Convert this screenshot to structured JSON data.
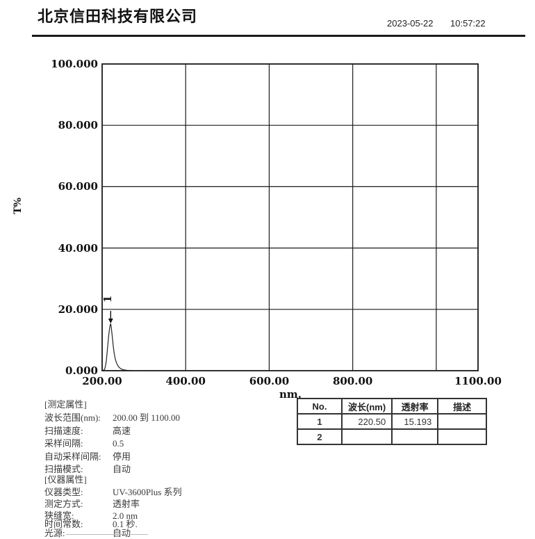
{
  "header": {
    "company": "北京信田科技有限公司",
    "date": "2023-05-22",
    "time": "10:57:22"
  },
  "chart_data": {
    "type": "line",
    "title": "",
    "xlabel": "nm.",
    "ylabel": "T%",
    "xlim": [
      200,
      1100
    ],
    "ylim": [
      0,
      100
    ],
    "grid": true,
    "x_ticks": [
      {
        "value": 200,
        "label": "200.00"
      },
      {
        "value": 400,
        "label": "400.00"
      },
      {
        "value": 600,
        "label": "600.00"
      },
      {
        "value": 800,
        "label": "800.00"
      },
      {
        "value": 1100,
        "label": "1100.00"
      }
    ],
    "x_gridlines": [
      400,
      600,
      800,
      1000
    ],
    "y_ticks": [
      {
        "value": 100,
        "label": "100.000"
      },
      {
        "value": 80,
        "label": "80.000"
      },
      {
        "value": 60,
        "label": "60.000"
      },
      {
        "value": 40,
        "label": "40.000"
      },
      {
        "value": 20,
        "label": "20.000"
      },
      {
        "value": 0,
        "label": "0.000"
      }
    ],
    "y_gridlines": [
      20,
      40,
      60,
      80
    ],
    "series": [
      {
        "name": "transmittance-spectrum",
        "points": [
          [
            200,
            0.1
          ],
          [
            204,
            0.2
          ],
          [
            206,
            0.5
          ],
          [
            208,
            1.5
          ],
          [
            210,
            3.2
          ],
          [
            212,
            6.0
          ],
          [
            214,
            9.0
          ],
          [
            216,
            11.8
          ],
          [
            218,
            13.9
          ],
          [
            219.5,
            15.0
          ],
          [
            220.5,
            15.193
          ],
          [
            221.5,
            14.6
          ],
          [
            223,
            12.8
          ],
          [
            225,
            10.2
          ],
          [
            227,
            7.6
          ],
          [
            229,
            5.6
          ],
          [
            231,
            4.1
          ],
          [
            234,
            2.7
          ],
          [
            237,
            1.8
          ],
          [
            240,
            1.2
          ],
          [
            244,
            0.7
          ],
          [
            248,
            0.4
          ],
          [
            253,
            0.25
          ],
          [
            258,
            0.15
          ],
          [
            265,
            0.08
          ],
          [
            275,
            0.03
          ],
          [
            300,
            0.0
          ],
          [
            1100,
            0.0
          ]
        ]
      }
    ],
    "peak_annotation": {
      "label": "1",
      "x": 220.5,
      "y": 15.193
    }
  },
  "peak_table": {
    "headers": [
      "No.",
      "波长(nm)",
      "透射率",
      "描述"
    ],
    "rows": [
      [
        "1",
        "220.50",
        "15.193",
        ""
      ],
      [
        "2",
        "",
        "",
        ""
      ]
    ]
  },
  "measurement_properties": {
    "section_title": "[测定属性]",
    "items": [
      {
        "label": "波长范围(nm):",
        "value": "200.00 到 1100.00"
      },
      {
        "label": "扫描速度:",
        "value": "高速"
      },
      {
        "label": "采样间隔:",
        "value": "0.5"
      },
      {
        "label": "自动采样间隔:",
        "value": "停用"
      },
      {
        "label": "扫描模式:",
        "value": "自动"
      }
    ]
  },
  "instrument_properties": {
    "section_title": "[仪器属性]",
    "items": [
      {
        "label": "仪器类型:",
        "value": "UV-3600Plus 系列"
      },
      {
        "label": "测定方式:",
        "value": "透射率"
      },
      {
        "label": "狭缝宽:",
        "value": "2.0 nm"
      },
      {
        "label": "时间常数:",
        "value": "0.1 秒."
      },
      {
        "label": "光源:",
        "value": "自动"
      }
    ]
  }
}
